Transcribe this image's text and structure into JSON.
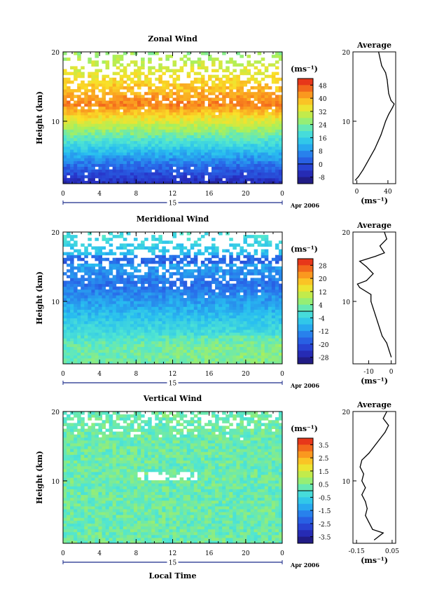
{
  "chart_data": [
    {
      "type": "heatmap",
      "title": "Zonal Wind",
      "ylabel": "Height (km)",
      "x_ticks": [
        "0",
        "4",
        "8",
        "12",
        "16",
        "20",
        "0"
      ],
      "y_ticks": [
        "20",
        "10"
      ],
      "xlim": [
        0,
        24
      ],
      "ylim": [
        1,
        20
      ],
      "date_label": "15",
      "date_suffix": "Apr 2006",
      "colorbar": {
        "unit": "(ms⁻¹)",
        "ticks": [
          "48",
          "40",
          "32",
          "24",
          "16",
          "8",
          "0",
          "-8"
        ],
        "range": [
          -12,
          52
        ]
      },
      "field": {
        "bottom": -6,
        "peak": 44,
        "peak_height": 12.5,
        "top": 26
      },
      "average": {
        "title": "Average",
        "xlabel": "(ms⁻¹)",
        "x_ticks": [
          "0",
          "40"
        ],
        "y_ticks": [
          "20",
          "10"
        ],
        "xlim": [
          -5,
          50
        ],
        "profile": [
          [
            1.5,
            -2
          ],
          [
            2,
            2
          ],
          [
            3,
            8
          ],
          [
            4,
            13
          ],
          [
            5,
            18
          ],
          [
            6,
            23
          ],
          [
            7,
            27
          ],
          [
            8,
            31
          ],
          [
            9,
            34
          ],
          [
            10,
            37
          ],
          [
            11,
            41
          ],
          [
            12,
            46
          ],
          [
            12.5,
            48
          ],
          [
            13,
            44
          ],
          [
            14,
            41
          ],
          [
            15,
            40
          ],
          [
            16,
            39
          ],
          [
            17,
            37
          ],
          [
            18,
            32
          ],
          [
            19,
            30
          ],
          [
            20,
            28
          ]
        ]
      }
    },
    {
      "type": "heatmap",
      "title": "Meridional Wind",
      "ylabel": "Height (km)",
      "x_ticks": [
        "0",
        "4",
        "8",
        "12",
        "16",
        "20",
        "0"
      ],
      "y_ticks": [
        "20",
        "10"
      ],
      "xlim": [
        0,
        24
      ],
      "ylim": [
        1,
        20
      ],
      "date_label": "15",
      "date_suffix": "Apr 2006",
      "colorbar": {
        "unit": "(ms⁻¹)",
        "ticks": [
          "28",
          "20",
          "12",
          "4",
          "-4",
          "-12",
          "-20",
          "-28"
        ],
        "range": [
          -32,
          32
        ]
      },
      "field": {
        "bottom": 2,
        "minimum": -16,
        "min_height": 12.5,
        "top": -6
      },
      "average": {
        "title": "Average",
        "xlabel": "(ms⁻¹)",
        "x_ticks": [
          "-10",
          "0"
        ],
        "y_ticks": [
          "20",
          "10"
        ],
        "xlim": [
          -17,
          2
        ],
        "profile": [
          [
            2,
            0
          ],
          [
            3,
            -1
          ],
          [
            4,
            -2
          ],
          [
            5,
            -4
          ],
          [
            6,
            -5
          ],
          [
            7,
            -6
          ],
          [
            8,
            -7
          ],
          [
            9,
            -8
          ],
          [
            10,
            -9
          ],
          [
            11,
            -9
          ],
          [
            12,
            -14
          ],
          [
            12.5,
            -15
          ],
          [
            13,
            -11
          ],
          [
            14,
            -8
          ],
          [
            15,
            -11
          ],
          [
            15.8,
            -14
          ],
          [
            16.5,
            -7
          ],
          [
            17,
            -3
          ],
          [
            18,
            -5
          ],
          [
            19,
            -2
          ],
          [
            20,
            -3
          ]
        ]
      }
    },
    {
      "type": "heatmap",
      "title": "Vertical Wind",
      "ylabel": "Height (km)",
      "xlabel": "Local Time",
      "x_ticks": [
        "0",
        "4",
        "8",
        "12",
        "16",
        "20",
        "0"
      ],
      "y_ticks": [
        "20",
        "10"
      ],
      "xlim": [
        0,
        24
      ],
      "ylim": [
        1,
        20
      ],
      "date_label": "15",
      "date_suffix": "Apr 2006",
      "colorbar": {
        "unit": "(ms⁻¹)",
        "ticks": [
          "3.5",
          "2.5",
          "1.5",
          "0.5",
          "-0.5",
          "-1.5",
          "-2.5",
          "-3.5"
        ],
        "range": [
          -4,
          4
        ]
      },
      "field": {
        "mean": 0.3
      },
      "average": {
        "title": "Average",
        "xlabel": "(ms⁻¹)",
        "x_ticks": [
          "-0.15",
          "0.05"
        ],
        "y_ticks": [
          "20",
          "10"
        ],
        "xlim": [
          -0.17,
          0.07
        ],
        "profile": [
          [
            1.5,
            -0.05
          ],
          [
            2.5,
            0.0
          ],
          [
            3,
            -0.06
          ],
          [
            4,
            -0.08
          ],
          [
            5,
            -0.1
          ],
          [
            6,
            -0.09
          ],
          [
            7,
            -0.1
          ],
          [
            8,
            -0.12
          ],
          [
            9,
            -0.1
          ],
          [
            10,
            -0.12
          ],
          [
            11,
            -0.11
          ],
          [
            12,
            -0.13
          ],
          [
            13,
            -0.12
          ],
          [
            14,
            -0.08
          ],
          [
            15,
            -0.05
          ],
          [
            16,
            -0.02
          ],
          [
            17,
            0.01
          ],
          [
            18,
            0.03
          ],
          [
            19,
            0.0
          ],
          [
            20,
            0.02
          ]
        ]
      }
    }
  ]
}
